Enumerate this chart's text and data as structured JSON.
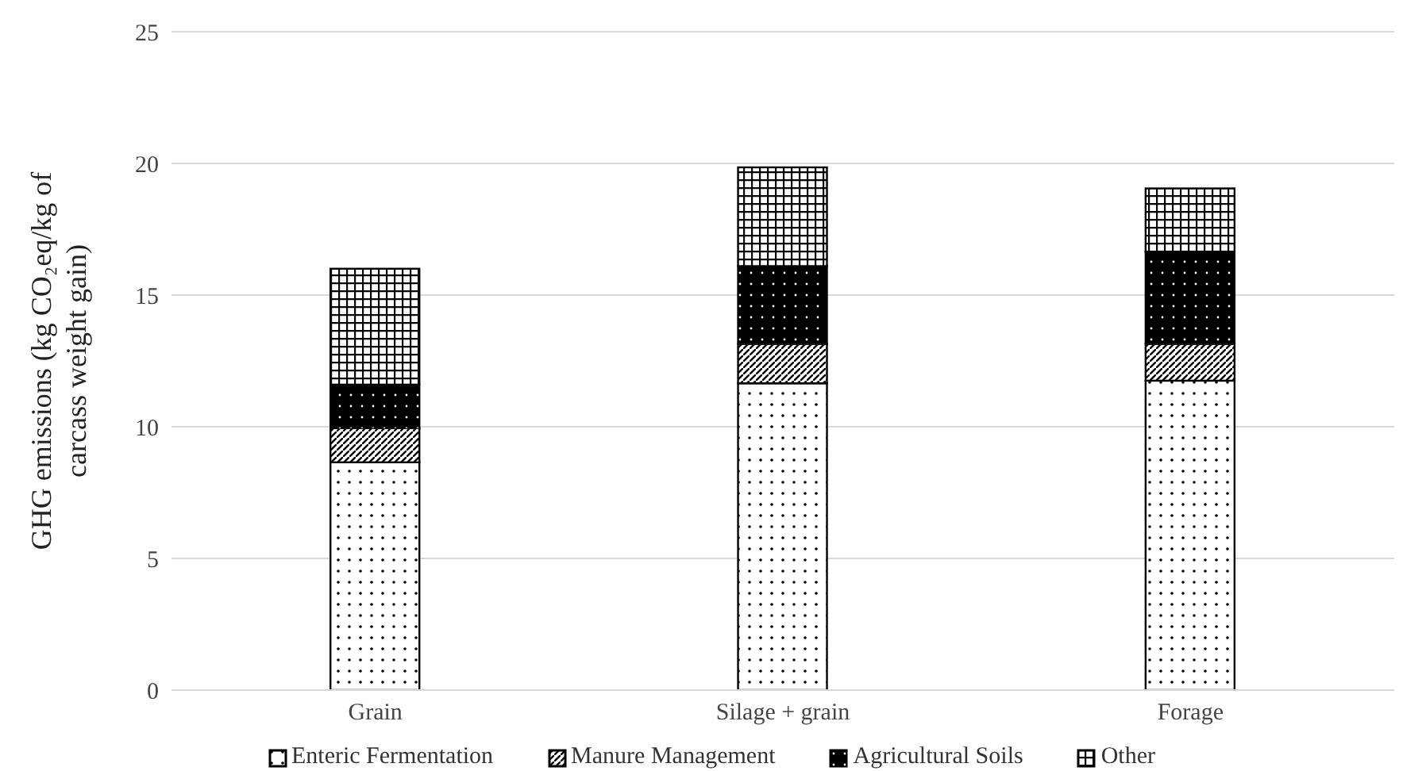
{
  "chart_data": {
    "type": "bar",
    "stacked": true,
    "ylabel": "GHG emissions (kg CO₂eq/kg of carcass weight gain)",
    "categories": [
      "Grain",
      "Silage + grain",
      "Forage"
    ],
    "series": [
      {
        "name": "Enteric Fermentation",
        "color": "#ffffff",
        "values": [
          8.65,
          11.65,
          11.75
        ]
      },
      {
        "name": "Manure Management",
        "color": "#ffffff",
        "values": [
          1.3,
          1.5,
          1.4
        ]
      },
      {
        "name": "Agricultural Soils",
        "color": "#000000",
        "values": [
          1.65,
          2.95,
          3.5
        ]
      },
      {
        "name": "Other",
        "color": "#ffffff",
        "values": [
          4.4,
          3.75,
          2.4
        ]
      }
    ],
    "ylim": [
      0,
      25
    ],
    "yticks": [
      0,
      5,
      10,
      15,
      20,
      25
    ],
    "grid": "y",
    "legend": "bottom"
  }
}
